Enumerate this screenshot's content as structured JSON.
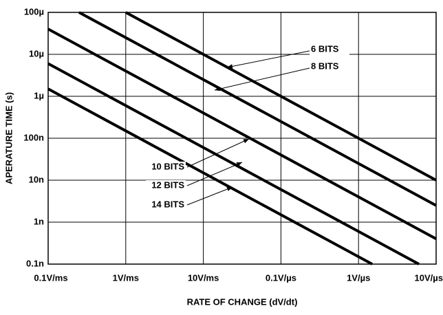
{
  "chart_data": {
    "type": "line",
    "xlabel": "RATE OF CHANGE (dV/dt)",
    "ylabel": "APERATURE TIME (s)",
    "xscale": "log",
    "yscale": "log",
    "grid": true,
    "xlim": [
      100,
      10000000
    ],
    "ylim": [
      1e-10,
      0.0001
    ],
    "xticks": [
      {
        "value": 100,
        "label": "0.1V/ms"
      },
      {
        "value": 1000,
        "label": "1V/ms"
      },
      {
        "value": 10000,
        "label": "10V/ms"
      },
      {
        "value": 100000,
        "label": "0.1V/µs"
      },
      {
        "value": 1000000,
        "label": "1V/µs"
      },
      {
        "value": 10000000,
        "label": "10V/µs"
      }
    ],
    "yticks": [
      {
        "value": 1e-10,
        "label": "0.1n"
      },
      {
        "value": 1e-09,
        "label": "1n"
      },
      {
        "value": 1e-08,
        "label": "10n"
      },
      {
        "value": 1e-07,
        "label": "100n"
      },
      {
        "value": 1e-06,
        "label": "1µ"
      },
      {
        "value": 1e-05,
        "label": "10µ"
      },
      {
        "value": 0.0001,
        "label": "100µ"
      }
    ],
    "series": [
      {
        "name": "6 BITS",
        "color": "#000000",
        "x": [
          1000,
          10000000
        ],
        "y": [
          0.0001,
          1e-08
        ]
      },
      {
        "name": "8 BITS",
        "color": "#000000",
        "x": [
          250,
          10000000
        ],
        "y": [
          0.0001,
          2.5e-09
        ]
      },
      {
        "name": "10 BITS",
        "color": "#000000",
        "x": [
          100,
          10000000
        ],
        "y": [
          4e-05,
          4e-10
        ]
      },
      {
        "name": "12 BITS",
        "color": "#000000",
        "x": [
          100,
          6000000
        ],
        "y": [
          6e-06,
          1e-10
        ]
      },
      {
        "name": "14 BITS",
        "color": "#000000",
        "x": [
          100,
          1500000
        ],
        "y": [
          1.5e-06,
          1e-10
        ]
      }
    ]
  }
}
